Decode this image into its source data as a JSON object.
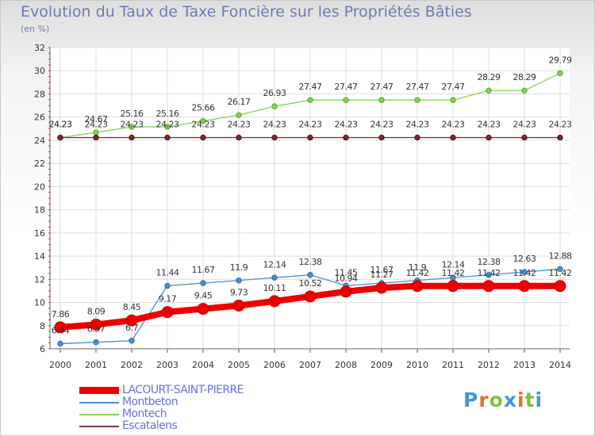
{
  "page": {
    "title": "Evolution du Taux de Taxe Foncière sur les Propriétés Bâties",
    "subtitle": "(en %)"
  },
  "logo": {
    "text": "Proxiti",
    "colors": [
      "#3d9ad8",
      "#e8711b",
      "#7dc242",
      "#3d9ad8",
      "#e8711b",
      "#7dc242",
      "#3d9ad8"
    ]
  },
  "chart_data": {
    "type": "line",
    "title": "Evolution du Taux de Taxe Foncière sur les Propriétés Bâties",
    "ylabel": "(en %)",
    "xlabel": "",
    "ylim": [
      6,
      32
    ],
    "yticks": [
      6,
      8,
      10,
      12,
      14,
      16,
      18,
      20,
      22,
      24,
      26,
      28,
      30,
      32
    ],
    "grid": true,
    "legend_position": "bottom-left",
    "x": [
      "2000",
      "2001",
      "2002",
      "2003",
      "2004",
      "2005",
      "2006",
      "2007",
      "2008",
      "2009",
      "2010",
      "2011",
      "2012",
      "2013",
      "2014"
    ],
    "series": [
      {
        "name": "LACOURT-SAINT-PIERRE",
        "color": "#ee0000",
        "values": [
          7.86,
          8.09,
          8.45,
          9.17,
          9.45,
          9.73,
          10.11,
          10.52,
          10.94,
          11.27,
          11.42,
          11.42,
          11.42,
          11.42,
          11.42
        ],
        "labels": [
          "7.86",
          "8.09",
          "8.45",
          "9.17",
          "9.45",
          "9.73",
          "10.11",
          "10.52",
          "10.94",
          "11.27",
          "11.42",
          "11.42",
          "11.42",
          "11.42",
          "11.42"
        ]
      },
      {
        "name": "Montbeton",
        "color": "#4a90cc",
        "values": [
          6.44,
          6.57,
          6.7,
          11.44,
          11.67,
          11.9,
          12.14,
          12.38,
          11.45,
          11.67,
          11.9,
          12.14,
          12.38,
          12.63,
          12.88
        ],
        "labels": [
          "6.44",
          "6.57",
          "6.7",
          "11.44",
          "11.67",
          "11.9",
          "12.14",
          "12.38",
          "11.45",
          "11.67",
          "11.9",
          "12.14",
          "12.38",
          "12.63",
          "12.88"
        ]
      },
      {
        "name": "Montech",
        "color": "#88d050",
        "values": [
          24.23,
          24.67,
          25.16,
          25.16,
          25.66,
          26.17,
          26.93,
          27.47,
          27.47,
          27.47,
          27.47,
          27.47,
          28.29,
          28.29,
          29.79
        ],
        "labels": [
          "24.23",
          "24.67",
          "25.16",
          "25.16",
          "25.66",
          "26.17",
          "26.93",
          "27.47",
          "27.47",
          "27.47",
          "27.47",
          "27.47",
          "28.29",
          "28.29",
          "29.79"
        ]
      },
      {
        "name": "Escatalens",
        "color": "#7a3a3a",
        "values": [
          24.23,
          24.23,
          24.23,
          24.23,
          24.23,
          24.23,
          24.23,
          24.23,
          24.23,
          24.23,
          24.23,
          24.23,
          24.23,
          24.23,
          24.23
        ],
        "labels": [
          "24.23",
          "24.23",
          "24.23",
          "24.23",
          "24.23",
          "24.23",
          "24.23",
          "24.23",
          "24.23",
          "24.23",
          "24.23",
          "24.23",
          "24.23",
          "24.23",
          "24.23"
        ]
      }
    ]
  }
}
